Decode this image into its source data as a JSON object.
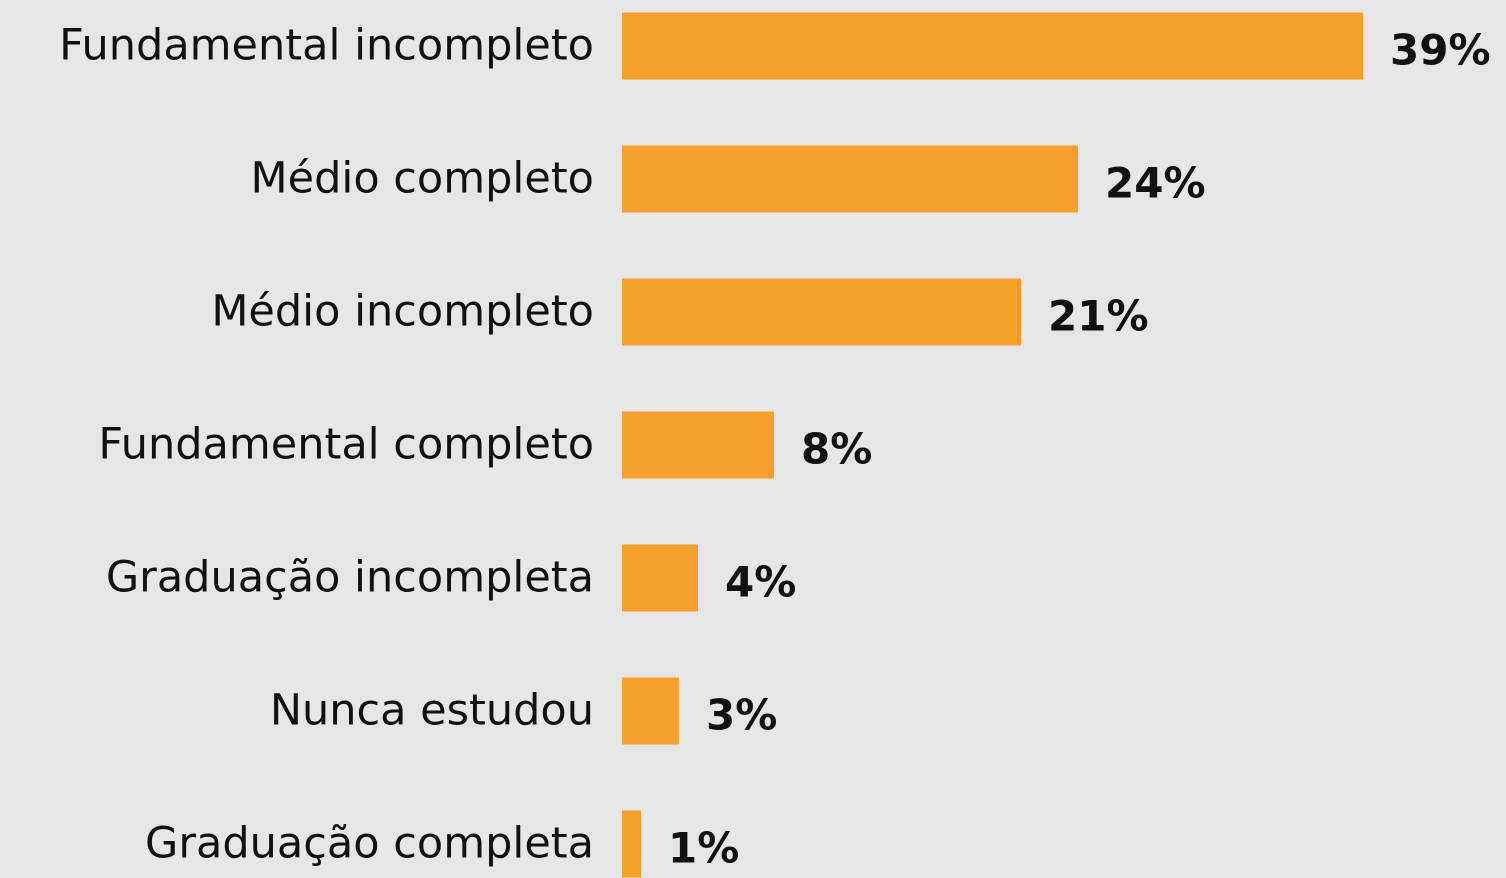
{
  "chart_data": {
    "type": "bar",
    "orientation": "horizontal",
    "categories": [
      "Fundamental incompleto",
      "Médio completo",
      "Médio incompleto",
      "Fundamental completo",
      "Graduação incompleta",
      "Nunca estudou",
      "Graduação completa"
    ],
    "values": [
      39,
      24,
      21,
      8,
      4,
      3,
      1
    ],
    "value_labels": [
      "39%",
      "24%",
      "21%",
      "8%",
      "4%",
      "3%",
      "1%"
    ],
    "color": "#f5a02a"
  }
}
